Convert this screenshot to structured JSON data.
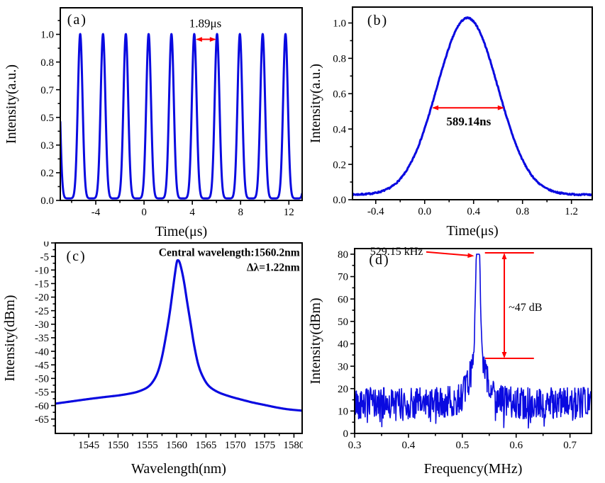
{
  "figure": {
    "background": "#ffffff",
    "curve_color": "#0a0ae0",
    "annotation_color": "#ff0000",
    "axis_color": "#000000"
  },
  "chart_data": [
    {
      "id": "a",
      "type": "line",
      "panel_label": "(a)",
      "xlabel": "Time(μs)",
      "ylabel": "Intensity(a.u.)",
      "xlim": [
        -6.94,
        13.1
      ],
      "ylim": [
        0,
        1.16
      ],
      "xtick_values": [
        -4,
        0,
        4,
        8,
        12
      ],
      "xtick_labels": [
        "-4",
        "0",
        "4",
        "8",
        "12"
      ],
      "ytick_values": [
        0,
        0.1667,
        0.3333,
        0.5,
        0.6667,
        0.8333,
        1.0
      ],
      "ytick_labels": [
        "0.0",
        "0.2",
        "0.3",
        "0.5",
        "0.7",
        "0.8",
        "1.0"
      ],
      "grid": false,
      "series": {
        "kind": "pulse_train",
        "period": 1.89,
        "center": 0.38,
        "sigma": 0.195,
        "amplitude": 0.99,
        "baseline": 0.012
      },
      "annotations": [
        {
          "type": "harrow",
          "x1": 4.28,
          "x2": 5.98,
          "y": 0.97
        },
        {
          "type": "text",
          "text": "1.89μs",
          "x": 5.08,
          "y": 1.068,
          "anchor": "middle",
          "size": 17,
          "bold": false
        }
      ]
    },
    {
      "id": "b",
      "type": "line",
      "panel_label": "(b)",
      "xlabel": "Time(μs)",
      "ylabel": "Intensity(a.u.)",
      "xlim": [
        -0.59,
        1.37
      ],
      "ylim": [
        0,
        1.09
      ],
      "xtick_values": [
        -0.4,
        0.0,
        0.4,
        0.8,
        1.2
      ],
      "xtick_labels": [
        "-0.4",
        "0.0",
        "0.4",
        "0.8",
        "1.2"
      ],
      "ytick_values": [
        0,
        0.2,
        0.4,
        0.6,
        0.8,
        1.0
      ],
      "ytick_labels": [
        "0.0",
        "0.2",
        "0.4",
        "0.6",
        "0.8",
        "1.0"
      ],
      "grid": false,
      "series": {
        "kind": "gaussian",
        "center": 0.35,
        "sigma": 0.25,
        "amplitude": 1.0,
        "baseline": 0.028,
        "noise": 0.004,
        "seed": 7
      },
      "annotations": [
        {
          "type": "harrow",
          "x1": 0.06,
          "x2": 0.65,
          "y": 0.52
        },
        {
          "type": "text",
          "text": "589.14ns",
          "x": 0.36,
          "y": 0.445,
          "anchor": "middle",
          "size": 17,
          "bold": true
        }
      ]
    },
    {
      "id": "c",
      "type": "line",
      "panel_label": "(c)",
      "xlabel": "Wavelength(nm)",
      "ylabel": "Intensity(dBm)",
      "xlim": [
        1539.3,
        1581.4
      ],
      "ylim": [
        -70.3,
        0
      ],
      "xtick_values": [
        1545,
        1550,
        1555,
        1560,
        1565,
        1570,
        1575,
        1580
      ],
      "xtick_labels": [
        "1545",
        "1550",
        "1555",
        "1560",
        "1565",
        "1570",
        "1575",
        "1580"
      ],
      "ytick_values": [
        0,
        -5,
        -10,
        -15,
        -20,
        -25,
        -30,
        -35,
        -40,
        -45,
        -50,
        -55,
        -60,
        -65
      ],
      "ytick_labels": [
        "0",
        "-5",
        "-10",
        "-15",
        "-20",
        "-25",
        "-30",
        "-35",
        "-40",
        "-45",
        "-50",
        "-55",
        "-60",
        "-65"
      ],
      "grid": false,
      "peak_wavelength_nm": 1560.2,
      "bandwidth_nm": 1.22,
      "series": {
        "kind": "spline",
        "points": [
          [
            1539.3,
            -59.3
          ],
          [
            1542,
            -58.5
          ],
          [
            1545,
            -57.6
          ],
          [
            1548,
            -56.8
          ],
          [
            1550,
            -56.3
          ],
          [
            1552,
            -55.6
          ],
          [
            1553.5,
            -54.8
          ],
          [
            1555,
            -53.3
          ],
          [
            1556,
            -51.0
          ],
          [
            1556.8,
            -47.5
          ],
          [
            1557.5,
            -42.0
          ],
          [
            1558.2,
            -34.0
          ],
          [
            1558.8,
            -26.0
          ],
          [
            1559.3,
            -18.0
          ],
          [
            1559.7,
            -11.5
          ],
          [
            1560.0,
            -7.3
          ],
          [
            1560.2,
            -6.4
          ],
          [
            1560.5,
            -7.2
          ],
          [
            1560.9,
            -10.5
          ],
          [
            1561.3,
            -15.0
          ],
          [
            1561.8,
            -22.0
          ],
          [
            1562.4,
            -30.0
          ],
          [
            1563.0,
            -38.0
          ],
          [
            1563.7,
            -45.0
          ],
          [
            1564.5,
            -49.5
          ],
          [
            1565.5,
            -52.8
          ],
          [
            1567,
            -55.0
          ],
          [
            1569,
            -56.6
          ],
          [
            1571,
            -57.8
          ],
          [
            1573,
            -58.9
          ],
          [
            1575,
            -59.8
          ],
          [
            1577,
            -60.7
          ],
          [
            1579,
            -61.4
          ],
          [
            1581.4,
            -61.9
          ]
        ]
      },
      "annotations": [
        {
          "type": "text",
          "text": "Central wavelength:1560.2nm",
          "x": 1581,
          "y": -3.4,
          "anchor": "end",
          "size": 15.5,
          "bold": true
        },
        {
          "type": "text",
          "text": "Δλ=1.22nm",
          "x": 1581,
          "y": -8.9,
          "anchor": "end",
          "size": 15.5,
          "bold": true
        }
      ]
    },
    {
      "id": "d",
      "type": "line",
      "panel_label": "(d)",
      "xlabel": "Frequency(MHz)",
      "ylabel": "Intensity(dBm)",
      "xlim": [
        0.3,
        0.74
      ],
      "ylim": [
        0,
        82.5
      ],
      "xtick_values": [
        0.3,
        0.4,
        0.5,
        0.6,
        0.7
      ],
      "xtick_labels": [
        "0.3",
        "0.4",
        "0.5",
        "0.6",
        "0.7"
      ],
      "ytick_values": [
        0,
        10,
        20,
        30,
        40,
        50,
        60,
        70,
        80
      ],
      "ytick_labels": [
        "0",
        "10",
        "20",
        "30",
        "40",
        "50",
        "60",
        "70",
        "80"
      ],
      "grid": false,
      "peak_frequency_khz": 529.15,
      "snr_db": 47,
      "series": {
        "kind": "rf_noise",
        "seed": 42,
        "n": 540,
        "floor": 13.5,
        "noise_amp": 7,
        "shoulders": [
          {
            "c": 0.529,
            "s": 0.025,
            "a": 6
          },
          {
            "c": 0.529,
            "s": 0.012,
            "a": 15
          }
        ],
        "spike": {
          "c": 0.529,
          "s": 0.0035,
          "a": 70
        },
        "cap": 80,
        "damp_sigma": 0.006,
        "damp_frac": 0.85
      },
      "annotations": [
        {
          "type": "text",
          "text": "529.15 kHz",
          "x": 0.427,
          "y": 81.4,
          "anchor": "end",
          "size": 16,
          "bold": false
        },
        {
          "type": "arrow",
          "x1": 0.433,
          "y1": 81.0,
          "x2": 0.522,
          "y2": 79.2
        },
        {
          "type": "hline",
          "x1": 0.542,
          "x2": 0.633,
          "y": 80.6
        },
        {
          "type": "hline",
          "x1": 0.542,
          "x2": 0.633,
          "y": 33.5
        },
        {
          "type": "varrow",
          "x": 0.578,
          "y1": 33.5,
          "y2": 80.6
        },
        {
          "type": "text",
          "text": "~47 dB",
          "x": 0.586,
          "y": 56.5,
          "anchor": "start",
          "size": 16,
          "bold": false
        }
      ]
    }
  ]
}
